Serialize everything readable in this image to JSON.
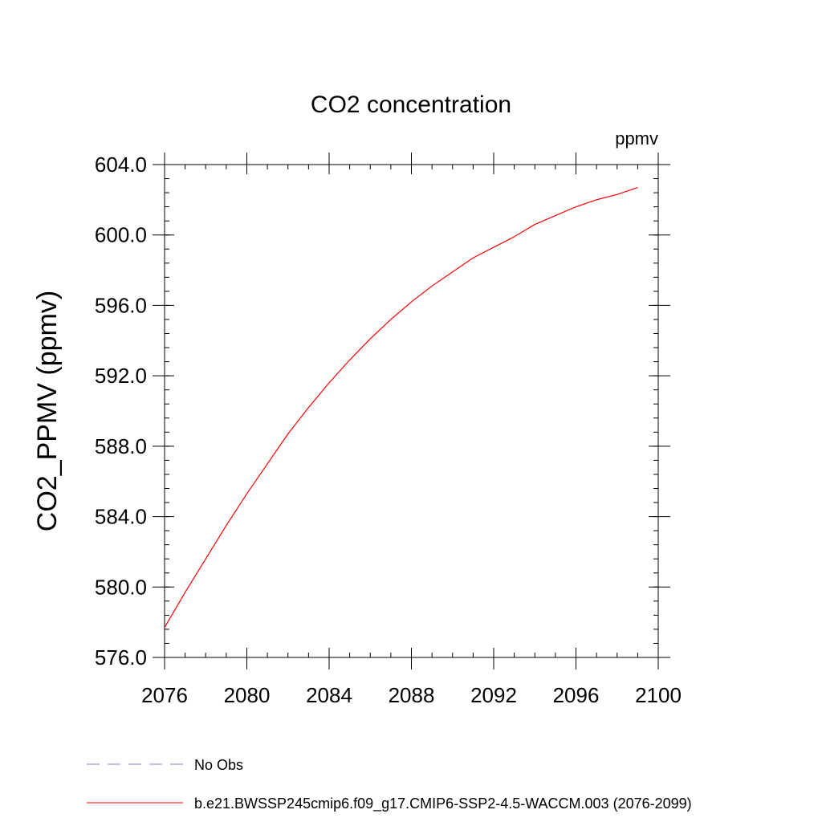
{
  "chart_data": {
    "type": "line",
    "title": "CO2 concentration",
    "unit_label": "ppmv",
    "ylabel": "CO2_PPMV  (ppmv)",
    "xlabel": "",
    "xlim": [
      2076,
      2100
    ],
    "ylim": [
      576.0,
      604.0
    ],
    "x_ticks": [
      2076,
      2080,
      2084,
      2088,
      2092,
      2096,
      2100
    ],
    "x_tick_labels": [
      "2076",
      "2080",
      "2084",
      "2088",
      "2092",
      "2096",
      "2100"
    ],
    "x_minor_step": 1,
    "y_ticks": [
      576.0,
      580.0,
      584.0,
      588.0,
      592.0,
      596.0,
      600.0,
      604.0
    ],
    "y_tick_labels": [
      "576.0",
      "580.0",
      "584.0",
      "588.0",
      "592.0",
      "596.0",
      "600.0",
      "604.0"
    ],
    "y_minor_step": 0.8,
    "grid": false,
    "legend_position": "bottom",
    "series": [
      {
        "name": "b.e21.BWSSP245cmip6.f09_g17.CMIP6-SSP2-4.5-WACCM.003 (2076-2099)",
        "color": "#ff0000",
        "style": "solid",
        "x": [
          2076,
          2077,
          2078,
          2079,
          2080,
          2081,
          2082,
          2083,
          2084,
          2085,
          2086,
          2087,
          2088,
          2089,
          2090,
          2091,
          2092,
          2093,
          2094,
          2095,
          2096,
          2097,
          2098,
          2099
        ],
        "y": [
          577.7,
          579.7,
          581.6,
          583.5,
          585.3,
          587.0,
          588.7,
          590.2,
          591.6,
          592.9,
          594.1,
          595.2,
          596.2,
          597.1,
          597.9,
          598.7,
          599.3,
          599.9,
          600.6,
          601.1,
          601.6,
          602.0,
          602.3,
          602.7
        ]
      }
    ],
    "legend": [
      {
        "label": "No Obs",
        "color": "#8080c0",
        "style": "dashed"
      },
      {
        "label": "b.e21.BWSSP245cmip6.f09_g17.CMIP6-SSP2-4.5-WACCM.003 (2076-2099)",
        "color": "#ff0000",
        "style": "solid"
      }
    ]
  }
}
